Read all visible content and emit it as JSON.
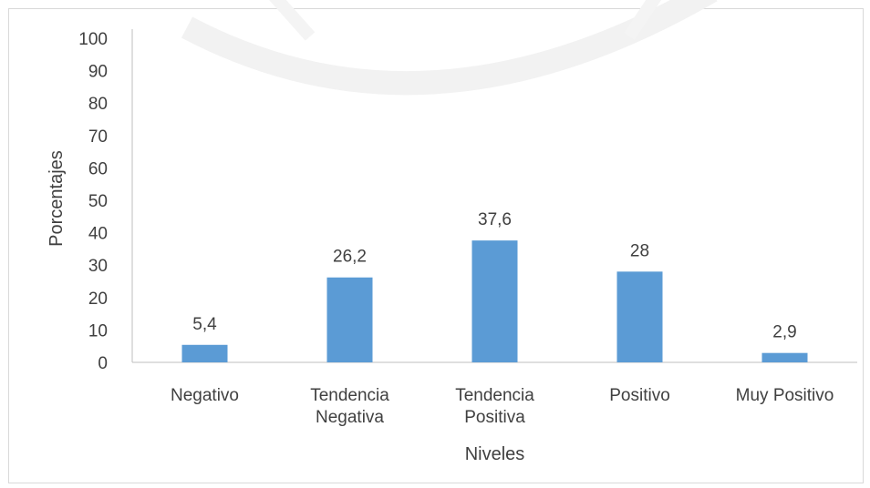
{
  "chart_data": {
    "type": "bar",
    "categories": [
      [
        "Negativo"
      ],
      [
        "Tendencia",
        "Negativa"
      ],
      [
        "Tendencia",
        "Positiva"
      ],
      [
        "Positivo"
      ],
      [
        "Muy Positivo"
      ]
    ],
    "values": [
      5.4,
      26.2,
      37.6,
      28,
      2.9
    ],
    "data_labels": [
      "5,4",
      "26,2",
      "37,6",
      "28",
      "2,9"
    ],
    "xlabel": "Niveles",
    "ylabel": "Porcentajes",
    "ylim": [
      0,
      100
    ],
    "yticks": [
      0,
      10,
      20,
      30,
      40,
      50,
      60,
      70,
      80,
      90,
      100
    ],
    "bar_color": "#5b9bd5",
    "grid": false,
    "legend": "none"
  }
}
